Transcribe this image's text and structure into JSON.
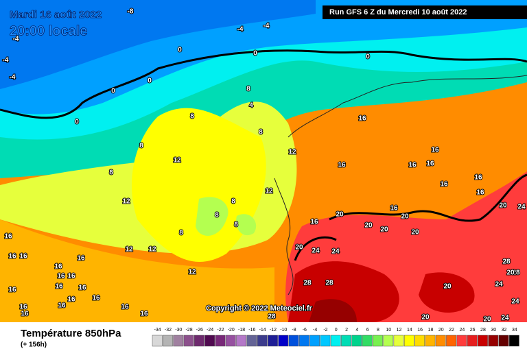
{
  "header": {
    "date": "Mardi 16 août 2022",
    "time": "20:00 locale",
    "run": "Run GFS 6 Z du Mercredi 10 août 2022"
  },
  "copyright": "Copyright © 2022 Meteociel.fr",
  "footer": {
    "title": "Température 850hPa",
    "lead": "(+ 156h)"
  },
  "scale": {
    "ticks": [
      -34,
      -32,
      -30,
      -28,
      -26,
      -24,
      -22,
      -20,
      -18,
      -16,
      -14,
      -12,
      -10,
      -8,
      -6,
      -4,
      -2,
      0,
      2,
      4,
      6,
      8,
      10,
      12,
      14,
      16,
      18,
      20,
      22,
      24,
      26,
      28,
      30,
      32,
      34
    ],
    "colors": [
      "#d8d8d8",
      "#b4b4b4",
      "#a080a0",
      "#8c508c",
      "#6e2a6e",
      "#500a50",
      "#782878",
      "#9650a0",
      "#b478c8",
      "#646496",
      "#3c3c8c",
      "#1e1e96",
      "#0000c8",
      "#0050dc",
      "#0078f0",
      "#00a0ff",
      "#00c8ff",
      "#00f0f0",
      "#00dcb4",
      "#00d28c",
      "#32dc64",
      "#78f050",
      "#b4ff50",
      "#e6ff3c",
      "#ffff00",
      "#ffdc00",
      "#ffb400",
      "#ff8c00",
      "#ff6400",
      "#ff3c3c",
      "#e61e1e",
      "#c80000",
      "#960000",
      "#640000",
      "#000000"
    ]
  },
  "contour_labels": [
    -8,
    -4,
    -4,
    -4,
    -4,
    -4,
    0,
    0,
    0,
    0,
    0,
    0,
    8,
    4,
    8,
    8,
    8,
    8,
    12,
    12,
    12,
    12,
    16,
    16,
    16,
    16,
    16,
    16,
    16,
    16,
    16,
    16,
    8,
    8,
    8,
    8,
    16,
    16,
    16,
    16,
    16,
    16,
    16,
    16,
    16,
    16,
    16,
    16,
    16,
    16,
    16,
    16,
    16,
    12,
    12,
    12,
    20,
    20,
    20,
    20,
    20,
    20,
    24,
    20,
    24,
    24,
    28,
    28,
    20,
    24,
    28,
    28,
    20,
    24,
    28,
    20,
    20,
    24
  ]
}
